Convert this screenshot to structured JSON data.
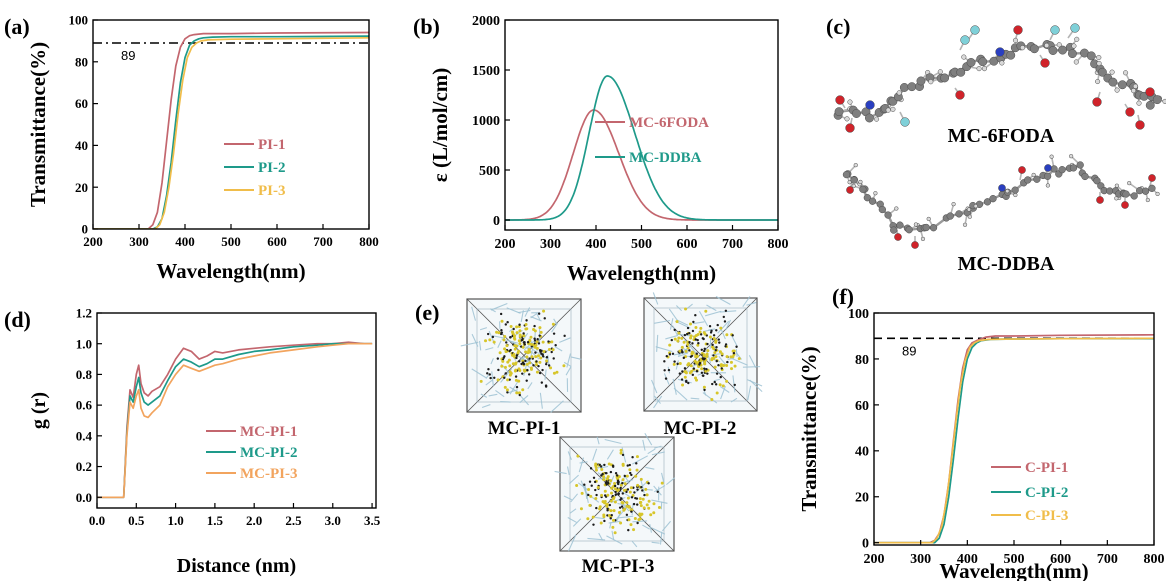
{
  "panel_labels": {
    "a": "(a)",
    "b": "(b)",
    "c": "(c)",
    "d": "(d)",
    "e": "(e)",
    "f": "(f)"
  },
  "colors": {
    "s1": "#c3666e",
    "s2": "#1e9a8a",
    "s3": "#f0bd4a",
    "s3d": "#f2a45e",
    "dash": "#000000",
    "box_frame": "#555555",
    "box_cloud": "#9fc3d4",
    "box_dot_a": "#d7c62a",
    "box_dot_b": "#1c1c1c",
    "atom_c": "#7f7f7f",
    "atom_o": "#d0232a",
    "atom_n": "#2a3fc0",
    "atom_f": "#7fd0d8"
  },
  "chart_data": [
    {
      "panel": "a",
      "type": "line",
      "xlabel": "Wavelength(nm)",
      "ylabel": "Transmittance(%)",
      "xlim": [
        200,
        800
      ],
      "ylim": [
        0,
        100
      ],
      "xticks": [
        200,
        300,
        400,
        500,
        600,
        700,
        800
      ],
      "yticks": [
        0,
        20,
        40,
        60,
        80,
        100
      ],
      "legend_position": "center-right",
      "reference_line": {
        "y": 89,
        "label": "89",
        "style": "dash-dot"
      },
      "series": [
        {
          "name": "PI-1",
          "color": "s1",
          "x": [
            200,
            320,
            330,
            340,
            350,
            360,
            370,
            380,
            390,
            400,
            410,
            420,
            440,
            500,
            600,
            800
          ],
          "y": [
            0,
            0,
            2,
            8,
            22,
            42,
            62,
            78,
            87,
            91,
            92.5,
            93,
            93.5,
            93.5,
            93.8,
            94
          ]
        },
        {
          "name": "PI-2",
          "color": "s2",
          "x": [
            200,
            330,
            340,
            350,
            360,
            370,
            380,
            390,
            400,
            410,
            420,
            430,
            440,
            460,
            500,
            600,
            800
          ],
          "y": [
            0,
            0,
            1,
            5,
            16,
            32,
            52,
            70,
            82,
            88,
            90,
            91,
            91.5,
            91.8,
            92,
            92,
            92.3
          ]
        },
        {
          "name": "PI-3",
          "color": "s3",
          "x": [
            200,
            335,
            345,
            355,
            365,
            375,
            385,
            395,
            405,
            415,
            425,
            435,
            450,
            500,
            600,
            800
          ],
          "y": [
            0,
            0,
            2,
            8,
            20,
            36,
            55,
            71,
            82,
            87,
            89,
            90,
            90.5,
            90.8,
            91,
            91.5
          ]
        }
      ]
    },
    {
      "panel": "b",
      "type": "line",
      "xlabel": "Wavelength(nm)",
      "ylabel": "ε (L/mol/cm)",
      "xlim": [
        200,
        800
      ],
      "ylim": [
        -100,
        2000
      ],
      "xticks": [
        200,
        300,
        400,
        500,
        600,
        700,
        800
      ],
      "yticks": [
        0,
        500,
        1000,
        1500,
        2000
      ],
      "legend_position": "center-right",
      "series": [
        {
          "name": "MC-6FODA",
          "color": "s1",
          "peak_x": 395,
          "peak_y": 1100,
          "sigma_left": 45,
          "sigma_right": 55
        },
        {
          "name": "MC-DDBA",
          "color": "s2",
          "peak_x": 425,
          "peak_y": 1440,
          "sigma_left": 40,
          "sigma_right": 60
        }
      ]
    },
    {
      "panel": "d",
      "type": "line",
      "xlabel": "Distance (nm)",
      "ylabel": "g (r)",
      "xlim": [
        0,
        3.55
      ],
      "ylim": [
        -0.07,
        1.2
      ],
      "xticks": [
        0.0,
        0.5,
        1.0,
        1.5,
        2.0,
        2.5,
        3.0,
        3.5
      ],
      "yticks": [
        0.0,
        0.2,
        0.4,
        0.6,
        0.8,
        1.0,
        1.2
      ],
      "legend_position": "lower-right",
      "series": [
        {
          "name": "MC-PI-1",
          "color": "s1",
          "x": [
            0,
            0.34,
            0.38,
            0.42,
            0.46,
            0.5,
            0.53,
            0.56,
            0.6,
            0.65,
            0.7,
            0.8,
            0.9,
            1.0,
            1.1,
            1.2,
            1.3,
            1.4,
            1.5,
            1.6,
            1.8,
            2.0,
            2.2,
            2.5,
            2.8,
            3.0,
            3.2,
            3.4,
            3.5
          ],
          "y": [
            0,
            0,
            0.45,
            0.7,
            0.65,
            0.8,
            0.86,
            0.74,
            0.68,
            0.66,
            0.69,
            0.72,
            0.8,
            0.9,
            0.97,
            0.95,
            0.9,
            0.92,
            0.95,
            0.94,
            0.96,
            0.97,
            0.98,
            0.99,
            1.0,
            1.0,
            1.01,
            1.0,
            1.0
          ]
        },
        {
          "name": "MC-PI-2",
          "color": "s2",
          "x": [
            0,
            0.34,
            0.38,
            0.42,
            0.46,
            0.5,
            0.53,
            0.56,
            0.6,
            0.65,
            0.7,
            0.8,
            0.9,
            1.0,
            1.1,
            1.2,
            1.3,
            1.4,
            1.5,
            1.6,
            1.8,
            2.0,
            2.2,
            2.5,
            2.8,
            3.0,
            3.2,
            3.4,
            3.5
          ],
          "y": [
            0,
            0,
            0.42,
            0.66,
            0.62,
            0.72,
            0.78,
            0.68,
            0.62,
            0.6,
            0.62,
            0.66,
            0.76,
            0.85,
            0.9,
            0.88,
            0.85,
            0.87,
            0.9,
            0.9,
            0.93,
            0.95,
            0.96,
            0.98,
            0.99,
            1.0,
            1.0,
            1.0,
            1.0
          ]
        },
        {
          "name": "MC-PI-3",
          "color": "s3d",
          "x": [
            0,
            0.34,
            0.38,
            0.42,
            0.46,
            0.5,
            0.53,
            0.56,
            0.6,
            0.65,
            0.7,
            0.8,
            0.9,
            1.0,
            1.1,
            1.2,
            1.3,
            1.4,
            1.5,
            1.6,
            1.8,
            2.0,
            2.2,
            2.5,
            2.8,
            3.0,
            3.2,
            3.4,
            3.5
          ],
          "y": [
            0,
            0,
            0.4,
            0.62,
            0.58,
            0.66,
            0.7,
            0.58,
            0.53,
            0.52,
            0.55,
            0.6,
            0.72,
            0.8,
            0.86,
            0.84,
            0.82,
            0.84,
            0.86,
            0.87,
            0.9,
            0.92,
            0.94,
            0.96,
            0.98,
            0.99,
            1.0,
            1.0,
            1.0
          ]
        }
      ]
    },
    {
      "panel": "f",
      "type": "line",
      "xlabel": "Wavelength(nm)",
      "ylabel": "Transmittance(%)",
      "xlim": [
        200,
        800
      ],
      "ylim": [
        -1,
        100
      ],
      "xticks": [
        200,
        300,
        400,
        500,
        600,
        700,
        800
      ],
      "yticks": [
        0,
        20,
        40,
        60,
        80,
        100
      ],
      "legend_position": "lower-right",
      "reference_line": {
        "y": 89,
        "label": "89",
        "style": "dash"
      },
      "series": [
        {
          "name": "C-PI-1",
          "color": "s1",
          "x": [
            200,
            320,
            330,
            340,
            350,
            360,
            370,
            380,
            390,
            400,
            410,
            420,
            440,
            460,
            500,
            600,
            800
          ],
          "y": [
            0,
            0,
            1,
            4,
            12,
            26,
            44,
            62,
            76,
            84,
            87,
            88,
            89.5,
            90,
            90,
            90.3,
            90.5
          ]
        },
        {
          "name": "C-PI-2",
          "color": "s2",
          "x": [
            200,
            330,
            340,
            350,
            360,
            370,
            380,
            390,
            400,
            410,
            420,
            430,
            450,
            500,
            600,
            800
          ],
          "y": [
            0,
            0,
            2,
            8,
            20,
            36,
            54,
            70,
            80,
            85,
            87,
            88,
            88.5,
            88.7,
            88.8,
            88.8
          ]
        },
        {
          "name": "C-PI-3",
          "color": "s3",
          "x": [
            200,
            325,
            335,
            345,
            355,
            365,
            375,
            385,
            395,
            405,
            415,
            425,
            445,
            500,
            600,
            800
          ],
          "y": [
            0,
            0,
            2,
            7,
            18,
            34,
            52,
            68,
            79,
            85,
            87,
            88,
            88.5,
            88.7,
            88.8,
            89
          ]
        }
      ]
    }
  ],
  "molecules": {
    "top_label": "MC-6FODA",
    "bottom_label": "MC-DDBA"
  },
  "boxes": {
    "labels": [
      "MC-PI-1",
      "MC-PI-2",
      "MC-PI-3"
    ]
  }
}
